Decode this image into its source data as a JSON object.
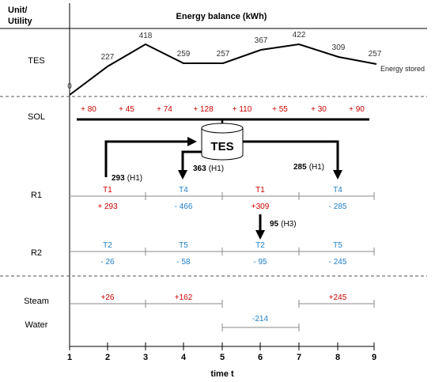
{
  "header": {
    "unit_label_line1": "Unit/",
    "unit_label_line2": "Utility",
    "title": "Energy balance (kWh)"
  },
  "rows": {
    "tes": "TES",
    "sol": "SOL",
    "r1": "R1",
    "r2": "R2",
    "steam": "Steam",
    "water": "Water"
  },
  "tes_storage": {
    "values": [
      "0",
      "227",
      "418",
      "259",
      "257",
      "367",
      "422",
      "309",
      "257"
    ],
    "series_label": "Energy stored"
  },
  "sol_gains": [
    "+ 80",
    "+ 45",
    "+ 74",
    "+ 128",
    "+ 110",
    "+ 55",
    "+ 30",
    "+ 90"
  ],
  "tank_label": "TES",
  "flows": {
    "h1_in_value": "293",
    "h1_in_tag": "(H1)",
    "h1_out_a_value": "363",
    "h1_out_a_tag": "(H1)",
    "h1_out_b_value": "285",
    "h1_out_b_tag": "(H1)",
    "h3_value": "95",
    "h3_tag": "(H3)"
  },
  "r1_tasks": [
    {
      "name": "T1",
      "value": "+ 293",
      "color": "#cc0000"
    },
    {
      "name": "T4",
      "value": "- 466",
      "color": "#1f7fc8"
    },
    {
      "name": "T1",
      "value": "+309",
      "color": "#cc0000"
    },
    {
      "name": "T4",
      "value": "- 285",
      "color": "#1f7fc8"
    }
  ],
  "r2_tasks": [
    {
      "name": "T2",
      "value": "- 26"
    },
    {
      "name": "T5",
      "value": "- 58"
    },
    {
      "name": "T2",
      "value": "- 95"
    },
    {
      "name": "T5",
      "value": "- 245"
    }
  ],
  "steam_values": [
    "+26",
    "+162",
    "+245"
  ],
  "water_values": [
    "-214"
  ],
  "x_axis": {
    "ticks": [
      "1",
      "2",
      "3",
      "4",
      "5",
      "6",
      "7",
      "8",
      "9"
    ],
    "label": "time t"
  },
  "colors": {
    "red": "#cc0000",
    "blue": "#1f7fc8",
    "line": "#000000",
    "grid": "#888888"
  }
}
